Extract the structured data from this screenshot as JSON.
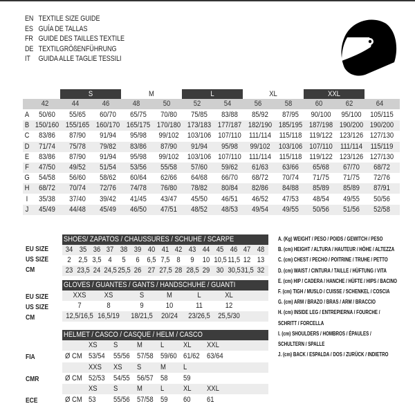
{
  "titles": [
    {
      "lang": "EN",
      "text": "TEXTILE SIZE GUIDE"
    },
    {
      "lang": "ES",
      "text": "GUÍA DE TALLAS"
    },
    {
      "lang": "FR",
      "text": "GUIDE DES TAILLES TEXTILE"
    },
    {
      "lang": "DE",
      "text": "TEXTILGRÖßENFÜHRUNG"
    },
    {
      "lang": "IT",
      "text": "GUIDA ALLE TAGLIE TESSILI"
    }
  ],
  "helmet_icon": "helmet-icon",
  "textile": {
    "size_groups": [
      "S",
      "M",
      "L",
      "XL",
      "XXL"
    ],
    "columns": [
      "42",
      "44",
      "46",
      "48",
      "50",
      "52",
      "54",
      "56",
      "58",
      "60",
      "62",
      "64"
    ],
    "rows": [
      {
        "letter": "A",
        "values": [
          "50/60",
          "55/65",
          "60/70",
          "65/75",
          "70/80",
          "75/85",
          "83/88",
          "85/92",
          "87/95",
          "90/100",
          "95/100",
          "105/115"
        ]
      },
      {
        "letter": "B",
        "values": [
          "150/160",
          "155/165",
          "160/170",
          "165/175",
          "170/180",
          "173/183",
          "177/187",
          "182/190",
          "185/195",
          "187/198",
          "190/200",
          "190/200"
        ]
      },
      {
        "letter": "C",
        "values": [
          "83/86",
          "87/90",
          "91/94",
          "95/98",
          "99/102",
          "103/106",
          "107/110",
          "111/114",
          "115/118",
          "119/122",
          "123/126",
          "127/130"
        ]
      },
      {
        "letter": "D",
        "values": [
          "71/74",
          "75/78",
          "79/82",
          "83/86",
          "87/90",
          "91/94",
          "95/98",
          "99/102",
          "103/106",
          "107/110",
          "111/114",
          "115/119"
        ]
      },
      {
        "letter": "E",
        "values": [
          "83/86",
          "87/90",
          "91/94",
          "95/98",
          "99/102",
          "103/106",
          "107/110",
          "111/114",
          "115/118",
          "119/122",
          "123/126",
          "127/130"
        ]
      },
      {
        "letter": "F",
        "values": [
          "47/50",
          "49/52",
          "51/54",
          "53/56",
          "55/58",
          "57/60",
          "59/62",
          "61/63",
          "63/66",
          "65/68",
          "67/70",
          "68/72"
        ]
      },
      {
        "letter": "G",
        "values": [
          "54/58",
          "56/60",
          "58/62",
          "60/64",
          "62/66",
          "64/68",
          "66/70",
          "68/72",
          "70/74",
          "71/75",
          "71/75",
          "72/76"
        ]
      },
      {
        "letter": "H",
        "values": [
          "68/72",
          "70/74",
          "72/76",
          "74/78",
          "76/80",
          "78/82",
          "80/84",
          "82/86",
          "84/88",
          "85/89",
          "85/89",
          "87/91"
        ]
      },
      {
        "letter": "I",
        "values": [
          "35/38",
          "37/40",
          "39/42",
          "41/45",
          "43/47",
          "45/50",
          "46/51",
          "46/52",
          "47/53",
          "48/54",
          "49/55",
          "50/56"
        ]
      },
      {
        "letter": "J",
        "values": [
          "45/49",
          "44/48",
          "45/49",
          "46/50",
          "47/51",
          "48/52",
          "48/53",
          "49/54",
          "49/55",
          "50/56",
          "51/56",
          "52/58"
        ]
      }
    ]
  },
  "shoes": {
    "title": "SHOES/ ZAPATOS / CHAUSSURES / SCHUHE / SCARPE",
    "rows": [
      {
        "label": "EU SIZE",
        "values": [
          "34",
          "35",
          "36",
          "37",
          "38",
          "39",
          "40",
          "41",
          "42",
          "43",
          "44",
          "45",
          "46",
          "47",
          "48"
        ]
      },
      {
        "label": "US SIZE",
        "values": [
          "2",
          "2,5",
          "3,5",
          "4",
          "5",
          "6",
          "6,5",
          "7,5",
          "8",
          "9",
          "10",
          "10,5",
          "11,5",
          "12",
          "13"
        ]
      },
      {
        "label": "CM",
        "values": [
          "23",
          "23,5",
          "24",
          "24,5",
          "25,5",
          "26",
          "27",
          "27,5",
          "28",
          "28,5",
          "29",
          "30",
          "30,5",
          "31,5",
          "32"
        ]
      }
    ]
  },
  "gloves": {
    "title": "GLOVES / GUANTES / GANTS / HANDSCHUHE / GUANTI",
    "rows": [
      {
        "label": "EU SIZE",
        "values": [
          "XXS",
          "XS",
          "S",
          "M",
          "L",
          "XL"
        ]
      },
      {
        "label": "US SIZE",
        "values": [
          "7",
          "8",
          "9",
          "10",
          "11",
          "12"
        ]
      },
      {
        "label": "CM",
        "values": [
          "12,5/16,5",
          "16,5/19",
          "18/21,5",
          "20/24",
          "23/26,5",
          "25,5/30"
        ]
      }
    ]
  },
  "helmet": {
    "title": "HELMET / CASCO / CASQUE / HELM / CASCO",
    "unit": "Ø CM",
    "standards": [
      {
        "label": "FIA",
        "sizes": [
          "XS",
          "S",
          "M",
          "L",
          "XL",
          "XXL"
        ],
        "values": [
          "53/54",
          "55/56",
          "57/58",
          "59/60",
          "61/62",
          "63/64"
        ]
      },
      {
        "label": "CMR",
        "sizes": [
          "XXS",
          "XS",
          "S",
          "M",
          "L"
        ],
        "values": [
          "52/53",
          "54/55",
          "56/57",
          "58",
          "59"
        ]
      },
      {
        "label": "ECE",
        "sizes": [
          "XS",
          "S",
          "M",
          "L",
          "XL",
          "XXL"
        ],
        "values": [
          "53",
          "55/56",
          "57/58",
          "59",
          "60",
          "61"
        ]
      }
    ]
  },
  "legend": [
    "A. (Kg) WEIGHT / PESO / POIDS / GEWITCH / PESO",
    "B. (cm) HEIGHT / ALTURA / HAUTEUR / HÖHE / ALTEZZA",
    "C. (cm) CHEST / PECHO / POITRINE / TRUHE / PETTO",
    "D. (cm) WAIST / CINTURA / TAILLE / HÜFTUNG / VITA",
    "E. (cm) HIP / CADERA / HANCHE / HÜFTE / HIPS /  BACINO",
    "F.  (cm) TIGH / MUSLO / CUISSE / SCHENKEL / COSCIA",
    "G. (cm) ARM  / BRAZO / BRAS / ARM / BRACCIO",
    "H. (cm) INSIDE LEG / ENTREPIERNA / FOURCHE /",
    "SCHRITT / FORCELLA",
    "I.  (cm) SHOULDERS / HOMBROS / ÉPAULES /",
    "SCHULTERN / SPALLE",
    "J. (cm) BACK / ESPALDA / DOS / ZURÜCK / INDIETRO"
  ]
}
